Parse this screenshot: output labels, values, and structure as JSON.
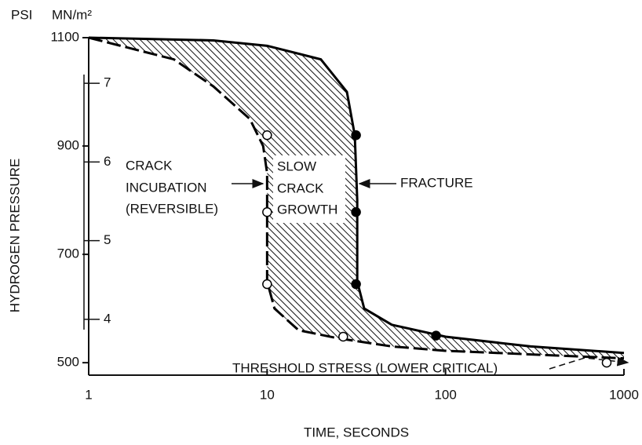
{
  "chart_data": {
    "type": "band-scatter",
    "x_label": "TIME, SECONDS",
    "y_label": "HYDROGEN PRESSURE",
    "y_unit": "PSI",
    "y2_unit": "MN/m²",
    "xscale": "log",
    "xlim": [
      1,
      1000
    ],
    "xticks": [
      1,
      10,
      100,
      1000
    ],
    "ylim": [
      477,
      1100
    ],
    "yticks": [
      500,
      700,
      900,
      1100
    ],
    "y2lim": [
      3.29,
      7.58
    ],
    "y2ticks": [
      4,
      5,
      6,
      7
    ],
    "band_color": "#000000",
    "curves": [
      {
        "style": "solid",
        "x": [
          1,
          5,
          10,
          20,
          28,
          31,
          32,
          32,
          35,
          50,
          100,
          300,
          1000
        ],
        "values": [
          1100,
          1095,
          1085,
          1060,
          1000,
          920,
          800,
          650,
          600,
          570,
          548,
          530,
          518
        ]
      },
      {
        "style": "dashed",
        "x": [
          1,
          3,
          5,
          8,
          9.5,
          10,
          10,
          11,
          15,
          25,
          50,
          100,
          1000
        ],
        "values": [
          1100,
          1060,
          1010,
          950,
          900,
          850,
          650,
          600,
          560,
          545,
          530,
          522,
          508
        ]
      }
    ],
    "series": [
      {
        "marker": "open",
        "color": "#000000",
        "x": [
          10,
          10,
          10,
          26.7,
          800
        ],
        "values": [
          920,
          778,
          645,
          548,
          500
        ]
      },
      {
        "marker": "filled",
        "color": "#000000",
        "x": [
          31.5,
          31.5,
          31.5,
          88.5
        ],
        "values": [
          920,
          778,
          645,
          550
        ]
      }
    ],
    "annotations": [
      {
        "lines": [
          "CRACK",
          "INCUBATION",
          "(REVERSIBLE)"
        ]
      },
      {
        "lines": [
          "SLOW",
          "CRACK",
          "GROWTH"
        ]
      },
      {
        "lines": [
          "FRACTURE"
        ]
      },
      {
        "lines": [
          "THRESHOLD STRESS (LOWER CRITICAL)"
        ]
      }
    ]
  }
}
